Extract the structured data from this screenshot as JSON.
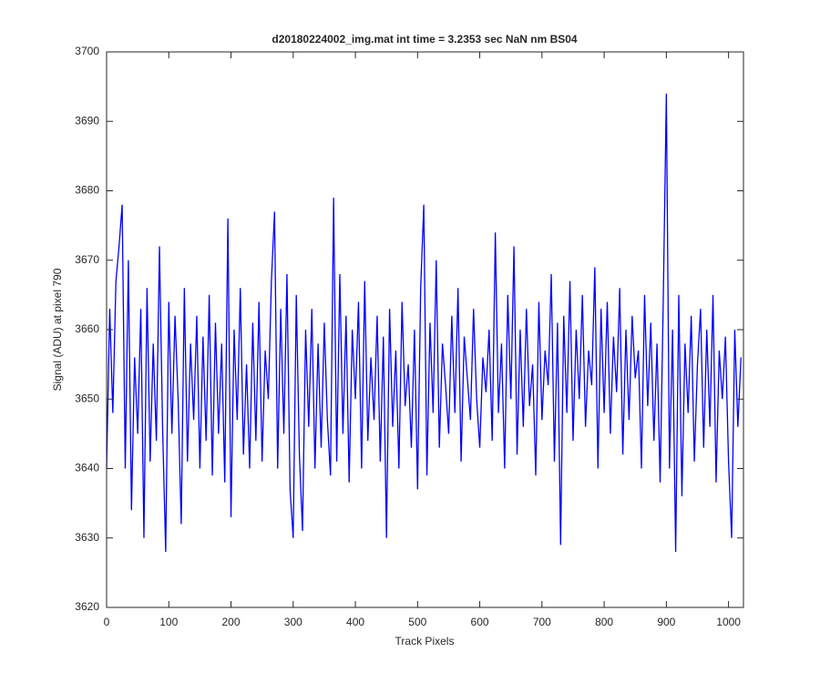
{
  "chart_data": {
    "type": "line",
    "title": "d20180224002_img.mat int time = 3.2353 sec  NaN nm BS04",
    "xlabel": "Track Pixels",
    "ylabel": "Signal (ADU) at pixel 790",
    "color": "#0000ff",
    "xlim": [
      0,
      1024
    ],
    "ylim": [
      3620,
      3700
    ],
    "xticks": [
      0,
      100,
      200,
      300,
      400,
      500,
      600,
      700,
      800,
      900,
      1000
    ],
    "yticks": [
      3620,
      3630,
      3640,
      3650,
      3660,
      3670,
      3680,
      3690,
      3700
    ],
    "x": [
      0,
      5,
      10,
      15,
      20,
      25,
      30,
      35,
      40,
      45,
      50,
      55,
      60,
      65,
      70,
      75,
      80,
      85,
      90,
      95,
      100,
      105,
      110,
      115,
      120,
      125,
      130,
      135,
      140,
      145,
      150,
      155,
      160,
      165,
      170,
      175,
      180,
      185,
      190,
      195,
      200,
      205,
      210,
      215,
      220,
      225,
      230,
      235,
      240,
      245,
      250,
      255,
      260,
      265,
      270,
      275,
      280,
      285,
      290,
      295,
      300,
      305,
      310,
      315,
      320,
      325,
      330,
      335,
      340,
      345,
      350,
      355,
      360,
      365,
      370,
      375,
      380,
      385,
      390,
      395,
      400,
      405,
      410,
      415,
      420,
      425,
      430,
      435,
      440,
      445,
      450,
      455,
      460,
      465,
      470,
      475,
      480,
      485,
      490,
      495,
      500,
      505,
      510,
      515,
      520,
      525,
      530,
      535,
      540,
      545,
      550,
      555,
      560,
      565,
      570,
      575,
      580,
      585,
      590,
      595,
      600,
      605,
      610,
      615,
      620,
      625,
      630,
      635,
      640,
      645,
      650,
      655,
      660,
      665,
      670,
      675,
      680,
      685,
      690,
      695,
      700,
      705,
      710,
      715,
      720,
      725,
      730,
      735,
      740,
      745,
      750,
      755,
      760,
      765,
      770,
      775,
      780,
      785,
      790,
      795,
      800,
      805,
      810,
      815,
      820,
      825,
      830,
      835,
      840,
      845,
      850,
      855,
      860,
      865,
      870,
      875,
      880,
      885,
      890,
      895,
      900,
      905,
      910,
      915,
      920,
      925,
      930,
      935,
      940,
      945,
      950,
      955,
      960,
      965,
      970,
      975,
      980,
      985,
      990,
      995,
      1000,
      1005,
      1010,
      1015,
      1020
    ],
    "values": [
      3640,
      3663,
      3648,
      3667,
      3672,
      3678,
      3640,
      3670,
      3634,
      3656,
      3645,
      3663,
      3630,
      3666,
      3641,
      3658,
      3644,
      3672,
      3646,
      3628,
      3664,
      3645,
      3662,
      3650,
      3632,
      3666,
      3641,
      3658,
      3647,
      3662,
      3640,
      3659,
      3644,
      3665,
      3639,
      3661,
      3645,
      3658,
      3638,
      3676,
      3633,
      3660,
      3647,
      3666,
      3642,
      3655,
      3640,
      3661,
      3644,
      3664,
      3641,
      3657,
      3650,
      3667,
      3677,
      3640,
      3663,
      3645,
      3668,
      3637,
      3630,
      3665,
      3642,
      3631,
      3660,
      3646,
      3663,
      3640,
      3658,
      3643,
      3661,
      3647,
      3639,
      3679,
      3641,
      3668,
      3645,
      3662,
      3638,
      3660,
      3650,
      3664,
      3640,
      3667,
      3644,
      3656,
      3647,
      3662,
      3641,
      3659,
      3630,
      3663,
      3646,
      3657,
      3640,
      3664,
      3649,
      3655,
      3643,
      3660,
      3637,
      3666,
      3678,
      3639,
      3661,
      3648,
      3670,
      3643,
      3658,
      3652,
      3645,
      3662,
      3648,
      3666,
      3641,
      3659,
      3653,
      3647,
      3663,
      3650,
      3643,
      3656,
      3651,
      3660,
      3644,
      3674,
      3648,
      3658,
      3640,
      3665,
      3650,
      3672,
      3642,
      3660,
      3646,
      3663,
      3649,
      3655,
      3639,
      3664,
      3647,
      3657,
      3652,
      3668,
      3641,
      3661,
      3629,
      3662,
      3648,
      3667,
      3644,
      3660,
      3650,
      3665,
      3646,
      3657,
      3652,
      3669,
      3640,
      3663,
      3648,
      3664,
      3645,
      3659,
      3651,
      3666,
      3642,
      3660,
      3647,
      3662,
      3653,
      3657,
      3640,
      3665,
      3649,
      3661,
      3644,
      3658,
      3638,
      3664,
      3694,
      3640,
      3660,
      3628,
      3665,
      3636,
      3658,
      3648,
      3662,
      3641,
      3655,
      3663,
      3643,
      3660,
      3646,
      3665,
      3638,
      3657,
      3650,
      3659,
      3641,
      3630,
      3660,
      3646,
      3656
    ]
  }
}
